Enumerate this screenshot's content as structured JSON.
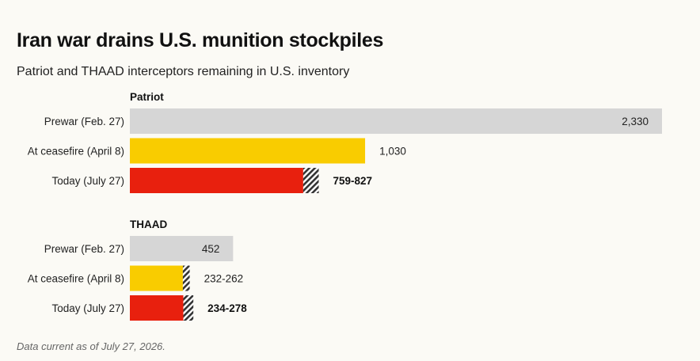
{
  "header": {
    "title": "Iran war drains U.S. munition stockpiles",
    "subtitle": "Patriot and THAAD interceptors remaining in U.S. inventory"
  },
  "footnote": "Data current as of July 27, 2026.",
  "colors": {
    "prewar": "#d6d6d6",
    "ceasefire": "#f9cc00",
    "today": "#e8200e",
    "range_hatch": "#333333"
  },
  "chart_data": [
    {
      "type": "bar",
      "orientation": "horizontal",
      "group": "Patriot",
      "categories": [
        "Prewar (Feb. 27)",
        "At ceasefire (April 8)",
        "Today (July 27)"
      ],
      "values": [
        {
          "low": 2330,
          "high": 2330,
          "label": "2,330",
          "color_key": "prewar",
          "label_inside": true,
          "bold": false
        },
        {
          "low": 1030,
          "high": 1030,
          "label": "1,030",
          "color_key": "ceasefire",
          "label_inside": false,
          "bold": false
        },
        {
          "low": 759,
          "high": 827,
          "label": "759-827",
          "color_key": "today",
          "label_inside": false,
          "bold": true
        }
      ]
    },
    {
      "type": "bar",
      "orientation": "horizontal",
      "group": "THAAD",
      "categories": [
        "Prewar (Feb. 27)",
        "At ceasefire (April 8)",
        "Today (July 27)"
      ],
      "values": [
        {
          "low": 452,
          "high": 452,
          "label": "452",
          "color_key": "prewar",
          "label_inside": true,
          "bold": false
        },
        {
          "low": 232,
          "high": 262,
          "label": "232-262",
          "color_key": "ceasefire",
          "label_inside": false,
          "bold": false
        },
        {
          "low": 234,
          "high": 278,
          "label": "234-278",
          "color_key": "today",
          "label_inside": false,
          "bold": true
        }
      ]
    }
  ]
}
